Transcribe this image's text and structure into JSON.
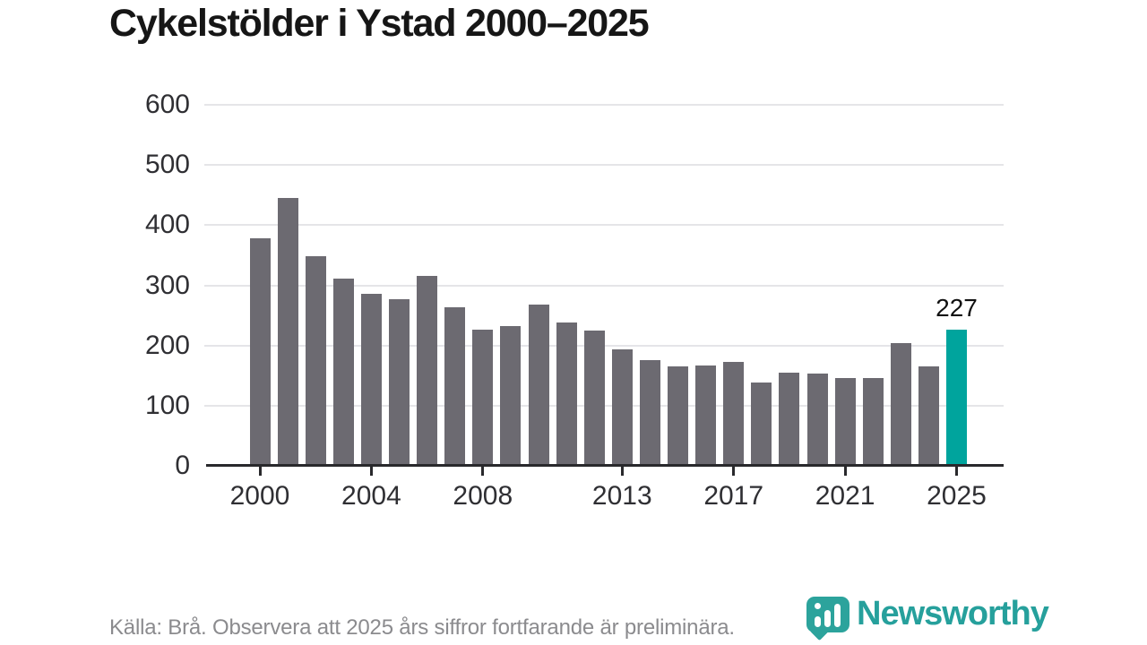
{
  "title": "Cykelstölder i Ystad 2000–2025",
  "chart_data": {
    "type": "bar",
    "title": "Cykelstölder i Ystad 2000–2025",
    "categories": [
      2000,
      2001,
      2002,
      2003,
      2004,
      2005,
      2006,
      2007,
      2008,
      2009,
      2010,
      2011,
      2012,
      2013,
      2014,
      2015,
      2016,
      2017,
      2018,
      2019,
      2020,
      2021,
      2022,
      2023,
      2024,
      2025
    ],
    "values": [
      378,
      445,
      349,
      311,
      286,
      277,
      316,
      264,
      227,
      233,
      268,
      238,
      225,
      193,
      175,
      166,
      167,
      173,
      138,
      155,
      154,
      146,
      146,
      204,
      165,
      227
    ],
    "ylim": [
      0,
      600
    ],
    "yticks": [
      0,
      100,
      200,
      300,
      400,
      500,
      600
    ],
    "xticks": [
      2000,
      2004,
      2008,
      2013,
      2017,
      2021,
      2025
    ],
    "grid": true,
    "legend_position": "none",
    "bar_color": "#6c6a71",
    "highlight_year": 2025,
    "highlight_color": "#00a49d",
    "highlight_value_label": "227"
  },
  "footer": {
    "source_text": "Källa: Brå. Observera att 2025 års siffror fortfarande är preliminära.",
    "brand_name": "Newsworthy",
    "brand_color": "#26a09c",
    "brand_icon_color": "#2ca39c"
  }
}
